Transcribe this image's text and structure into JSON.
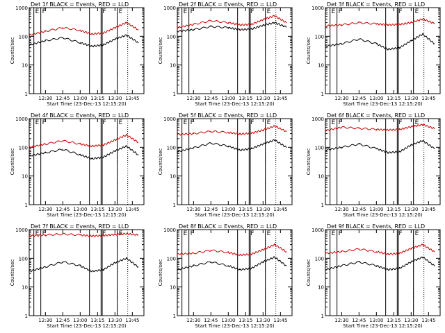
{
  "chart_data": [
    {
      "type": "line",
      "title": "Det 1f BLACK = Events, RED = LLD",
      "xlabel": "Start Time (23-Dec-13 12:15:20)",
      "ylabel": "Counts/sec",
      "yscale": "log",
      "ylim": [
        1,
        1000
      ],
      "yticks": [
        "1",
        "10",
        "100",
        "1000"
      ],
      "xticks": [
        "12:30",
        "12:45",
        "13:00",
        "13:15",
        "13:30",
        "13:45"
      ],
      "markers": [
        {
          "label": "E",
          "t": "12:20"
        },
        {
          "label": "F",
          "t": "12:26"
        },
        {
          "label": "",
          "t": "13:08"
        },
        {
          "label": "F",
          "t": "13:18"
        },
        {
          "label": "",
          "t": "13:19"
        },
        {
          "label": "E",
          "t": "13:32"
        }
      ],
      "dotted_t": [
        "13:32",
        "13:41"
      ],
      "series": [
        {
          "name": "BLACK = Events",
          "color": "#000000",
          "t": [
            "12:16",
            "12:30",
            "12:45",
            "13:00",
            "13:10",
            "13:20",
            "13:30",
            "13:40",
            "13:50"
          ],
          "values": [
            50,
            70,
            90,
            60,
            45,
            50,
            80,
            110,
            60
          ]
        },
        {
          "name": "RED = LLD",
          "color": "#cc0000",
          "t": [
            "12:16",
            "12:30",
            "12:45",
            "13:00",
            "13:10",
            "13:20",
            "13:30",
            "13:40",
            "13:50"
          ],
          "values": [
            110,
            150,
            200,
            160,
            120,
            130,
            200,
            300,
            170
          ]
        }
      ]
    },
    {
      "type": "line",
      "title": "Det 2f BLACK = Events, RED = LLD",
      "xlabel": "Start Time (23-Dec-13 12:15:20)",
      "ylabel": "Counts/sec",
      "yscale": "log",
      "ylim": [
        1,
        1000
      ],
      "yticks": [
        "1",
        "10",
        "100",
        "1000"
      ],
      "xticks": [
        "12:30",
        "12:45",
        "13:00",
        "13:15",
        "13:30",
        "13:45"
      ],
      "markers": [
        {
          "label": "E",
          "t": "12:20"
        },
        {
          "label": "F",
          "t": "12:26"
        },
        {
          "label": "",
          "t": "13:08"
        },
        {
          "label": "F",
          "t": "13:18"
        },
        {
          "label": "",
          "t": "13:19"
        },
        {
          "label": "E",
          "t": "13:32"
        }
      ],
      "dotted_t": [
        "13:32",
        "13:41"
      ],
      "series": [
        {
          "name": "BLACK = Events",
          "color": "#000000",
          "t": [
            "12:16",
            "12:30",
            "12:45",
            "13:00",
            "13:10",
            "13:20",
            "13:30",
            "13:40",
            "13:50"
          ],
          "values": [
            150,
            170,
            220,
            200,
            170,
            180,
            240,
            300,
            210
          ]
        },
        {
          "name": "RED = LLD",
          "color": "#cc0000",
          "t": [
            "12:16",
            "12:30",
            "12:45",
            "13:00",
            "13:10",
            "13:20",
            "13:30",
            "13:40",
            "13:50"
          ],
          "values": [
            200,
            260,
            350,
            300,
            250,
            260,
            380,
            520,
            300
          ]
        }
      ]
    },
    {
      "type": "line",
      "title": "Det 3f BLACK = Events, RED = LLD",
      "xlabel": "Start Time (23-Dec-13 12:15:20)",
      "ylabel": "Counts/sec",
      "yscale": "log",
      "ylim": [
        1,
        1000
      ],
      "yticks": [
        "1",
        "10",
        "100",
        "1000"
      ],
      "xticks": [
        "12:30",
        "12:45",
        "13:00",
        "13:15",
        "13:30",
        "13:45"
      ],
      "markers": [
        {
          "label": "E",
          "t": "12:20"
        },
        {
          "label": "F",
          "t": "12:26"
        },
        {
          "label": "",
          "t": "13:08"
        },
        {
          "label": "F",
          "t": "13:18"
        },
        {
          "label": "",
          "t": "13:19"
        },
        {
          "label": "E",
          "t": "13:32"
        }
      ],
      "dotted_t": [
        "13:32",
        "13:41"
      ],
      "series": [
        {
          "name": "BLACK = Events",
          "color": "#000000",
          "t": [
            "12:16",
            "12:30",
            "12:45",
            "13:00",
            "13:10",
            "13:20",
            "13:30",
            "13:40",
            "13:50"
          ],
          "values": [
            45,
            55,
            80,
            55,
            35,
            40,
            70,
            120,
            55
          ]
        },
        {
          "name": "RED = LLD",
          "color": "#cc0000",
          "t": [
            "12:16",
            "12:30",
            "12:45",
            "13:00",
            "13:10",
            "13:20",
            "13:30",
            "13:40",
            "13:50"
          ],
          "values": [
            230,
            250,
            300,
            270,
            250,
            260,
            300,
            400,
            280
          ]
        }
      ]
    },
    {
      "type": "line",
      "title": "Det 4f BLACK = Events, RED = LLD",
      "xlabel": "Start Time (23-Dec-13 12:15:20)",
      "ylabel": "Counts/sec",
      "yscale": "log",
      "ylim": [
        1,
        1000
      ],
      "yticks": [
        "1",
        "10",
        "100",
        "1000"
      ],
      "xticks": [
        "12:30",
        "12:45",
        "13:00",
        "13:15",
        "13:30",
        "13:45"
      ],
      "markers": [
        {
          "label": "E",
          "t": "12:20"
        },
        {
          "label": "F",
          "t": "12:26"
        },
        {
          "label": "",
          "t": "13:08"
        },
        {
          "label": "F",
          "t": "13:18"
        },
        {
          "label": "",
          "t": "13:19"
        },
        {
          "label": "E",
          "t": "13:32"
        }
      ],
      "dotted_t": [
        "13:32",
        "13:41"
      ],
      "series": [
        {
          "name": "BLACK = Events",
          "color": "#000000",
          "t": [
            "12:16",
            "12:30",
            "12:45",
            "13:00",
            "13:10",
            "13:20",
            "13:30",
            "13:40",
            "13:50"
          ],
          "values": [
            50,
            65,
            85,
            55,
            40,
            45,
            75,
            110,
            55
          ]
        },
        {
          "name": "RED = LLD",
          "color": "#cc0000",
          "t": [
            "12:16",
            "12:30",
            "12:45",
            "13:00",
            "13:10",
            "13:20",
            "13:30",
            "13:40",
            "13:50"
          ],
          "values": [
            100,
            130,
            170,
            130,
            110,
            120,
            180,
            270,
            150
          ]
        }
      ]
    },
    {
      "type": "line",
      "title": "Det 5f BLACK = Events, RED = LLD",
      "xlabel": "Start Time (23-Dec-13 12:15:20)",
      "ylabel": "Counts/sec",
      "yscale": "log",
      "ylim": [
        1,
        1000
      ],
      "yticks": [
        "1",
        "10",
        "100",
        "1000"
      ],
      "xticks": [
        "12:30",
        "12:45",
        "13:00",
        "13:15",
        "13:30",
        "13:45"
      ],
      "markers": [
        {
          "label": "E",
          "t": "12:20"
        },
        {
          "label": "F",
          "t": "12:26"
        },
        {
          "label": "",
          "t": "13:08"
        },
        {
          "label": "F",
          "t": "13:18"
        },
        {
          "label": "",
          "t": "13:19"
        },
        {
          "label": "E",
          "t": "13:32"
        }
      ],
      "dotted_t": [
        "13:32",
        "13:41"
      ],
      "series": [
        {
          "name": "BLACK = Events",
          "color": "#000000",
          "t": [
            "12:16",
            "12:30",
            "12:45",
            "13:00",
            "13:10",
            "13:20",
            "13:30",
            "13:40",
            "13:50"
          ],
          "values": [
            70,
            95,
            140,
            110,
            80,
            90,
            130,
            180,
            100
          ]
        },
        {
          "name": "RED = LLD",
          "color": "#cc0000",
          "t": [
            "12:16",
            "12:30",
            "12:45",
            "13:00",
            "13:10",
            "13:20",
            "13:30",
            "13:40",
            "13:50"
          ],
          "values": [
            280,
            300,
            360,
            330,
            290,
            310,
            400,
            550,
            360
          ]
        }
      ]
    },
    {
      "type": "line",
      "title": "Det 6f BLACK = Events, RED = LLD",
      "xlabel": "Start Time (23-Dec-13 12:15:20)",
      "ylabel": "Counts/sec",
      "yscale": "log",
      "ylim": [
        1,
        1000
      ],
      "yticks": [
        "1",
        "10",
        "100",
        "1000"
      ],
      "xticks": [
        "12:30",
        "12:45",
        "13:00",
        "13:15",
        "13:30",
        "13:45"
      ],
      "markers": [
        {
          "label": "E",
          "t": "12:20"
        },
        {
          "label": "F",
          "t": "12:26"
        },
        {
          "label": "",
          "t": "13:08"
        },
        {
          "label": "F",
          "t": "13:18"
        },
        {
          "label": "",
          "t": "13:19"
        },
        {
          "label": "E",
          "t": "13:32"
        }
      ],
      "dotted_t": [
        "13:32",
        "13:41"
      ],
      "series": [
        {
          "name": "BLACK = Events",
          "color": "#000000",
          "t": [
            "12:16",
            "12:30",
            "12:45",
            "13:00",
            "13:10",
            "13:20",
            "13:30",
            "13:40",
            "13:50"
          ],
          "values": [
            80,
            100,
            130,
            90,
            65,
            70,
            120,
            170,
            90
          ]
        },
        {
          "name": "RED = LLD",
          "color": "#cc0000",
          "t": [
            "12:16",
            "12:30",
            "12:45",
            "13:00",
            "13:10",
            "13:20",
            "13:30",
            "13:40",
            "13:50"
          ],
          "values": [
            380,
            500,
            460,
            420,
            400,
            420,
            520,
            620,
            450
          ]
        }
      ]
    },
    {
      "type": "line",
      "title": "Det 7f BLACK = Events, RED = LLD",
      "xlabel": "Start Time (23-Dec-13 12:15:20)",
      "ylabel": "Counts/sec",
      "yscale": "log",
      "ylim": [
        1,
        1000
      ],
      "yticks": [
        "1",
        "10",
        "100",
        "1000"
      ],
      "xticks": [
        "12:30",
        "12:45",
        "13:00",
        "13:15",
        "13:30",
        "13:45"
      ],
      "markers": [
        {
          "label": "E",
          "t": "12:20"
        },
        {
          "label": "F",
          "t": "12:26"
        },
        {
          "label": "",
          "t": "13:08"
        },
        {
          "label": "F",
          "t": "13:18"
        },
        {
          "label": "",
          "t": "13:19"
        },
        {
          "label": "E",
          "t": "13:32"
        }
      ],
      "dotted_t": [
        "13:32",
        "13:41"
      ],
      "series": [
        {
          "name": "BLACK = Events",
          "color": "#000000",
          "t": [
            "12:16",
            "12:30",
            "12:45",
            "13:00",
            "13:10",
            "13:20",
            "13:30",
            "13:40",
            "13:50"
          ],
          "values": [
            35,
            50,
            75,
            55,
            35,
            40,
            70,
            100,
            50
          ]
        },
        {
          "name": "RED = LLD",
          "color": "#cc0000",
          "t": [
            "12:16",
            "12:30",
            "12:45",
            "13:00",
            "13:10",
            "13:20",
            "13:30",
            "13:40",
            "13:50"
          ],
          "values": [
            600,
            650,
            700,
            650,
            600,
            620,
            680,
            720,
            650
          ]
        }
      ]
    },
    {
      "type": "line",
      "title": "Det 8f BLACK = Events, RED = LLD",
      "xlabel": "Start Time (23-Dec-13 12:15:20)",
      "ylabel": "Counts/sec",
      "yscale": "log",
      "ylim": [
        1,
        1000
      ],
      "yticks": [
        "1",
        "10",
        "100",
        "1000"
      ],
      "xticks": [
        "12:30",
        "12:45",
        "13:00",
        "13:15",
        "13:30",
        "13:45"
      ],
      "markers": [
        {
          "label": "E",
          "t": "12:20"
        },
        {
          "label": "F",
          "t": "12:26"
        },
        {
          "label": "",
          "t": "13:08"
        },
        {
          "label": "F",
          "t": "13:18"
        },
        {
          "label": "",
          "t": "13:19"
        },
        {
          "label": "E",
          "t": "13:32"
        }
      ],
      "dotted_t": [
        "13:32",
        "13:41"
      ],
      "series": [
        {
          "name": "BLACK = Events",
          "color": "#000000",
          "t": [
            "12:16",
            "12:30",
            "12:45",
            "13:00",
            "13:10",
            "13:20",
            "13:30",
            "13:40",
            "13:50"
          ],
          "values": [
            40,
            55,
            75,
            55,
            40,
            45,
            75,
            110,
            55
          ]
        },
        {
          "name": "RED = LLD",
          "color": "#cc0000",
          "t": [
            "12:16",
            "12:30",
            "12:45",
            "13:00",
            "13:10",
            "13:20",
            "13:30",
            "13:40",
            "13:50"
          ],
          "values": [
            140,
            150,
            190,
            160,
            130,
            140,
            200,
            300,
            170
          ]
        }
      ]
    },
    {
      "type": "line",
      "title": "Det 9f BLACK = Events, RED = LLD",
      "xlabel": "Start Time (23-Dec-13 12:15:20)",
      "ylabel": "Counts/sec",
      "yscale": "log",
      "ylim": [
        1,
        1000
      ],
      "yticks": [
        "1",
        "10",
        "100",
        "1000"
      ],
      "xticks": [
        "12:30",
        "12:45",
        "13:00",
        "13:15",
        "13:30",
        "13:45"
      ],
      "markers": [
        {
          "label": "E",
          "t": "12:20"
        },
        {
          "label": "F",
          "t": "12:26"
        },
        {
          "label": "",
          "t": "13:08"
        },
        {
          "label": "F",
          "t": "13:18"
        },
        {
          "label": "",
          "t": "13:19"
        },
        {
          "label": "E",
          "t": "13:32"
        }
      ],
      "dotted_t": [
        "13:32",
        "13:41"
      ],
      "series": [
        {
          "name": "BLACK = Events",
          "color": "#000000",
          "t": [
            "12:16",
            "12:30",
            "12:45",
            "13:00",
            "13:10",
            "13:20",
            "13:30",
            "13:40",
            "13:50"
          ],
          "values": [
            40,
            55,
            75,
            55,
            40,
            45,
            75,
            110,
            55
          ]
        },
        {
          "name": "RED = LLD",
          "color": "#cc0000",
          "t": [
            "12:16",
            "12:30",
            "12:45",
            "13:00",
            "13:10",
            "13:20",
            "13:30",
            "13:40",
            "13:50"
          ],
          "values": [
            150,
            170,
            210,
            170,
            140,
            150,
            220,
            300,
            170
          ]
        }
      ]
    }
  ]
}
